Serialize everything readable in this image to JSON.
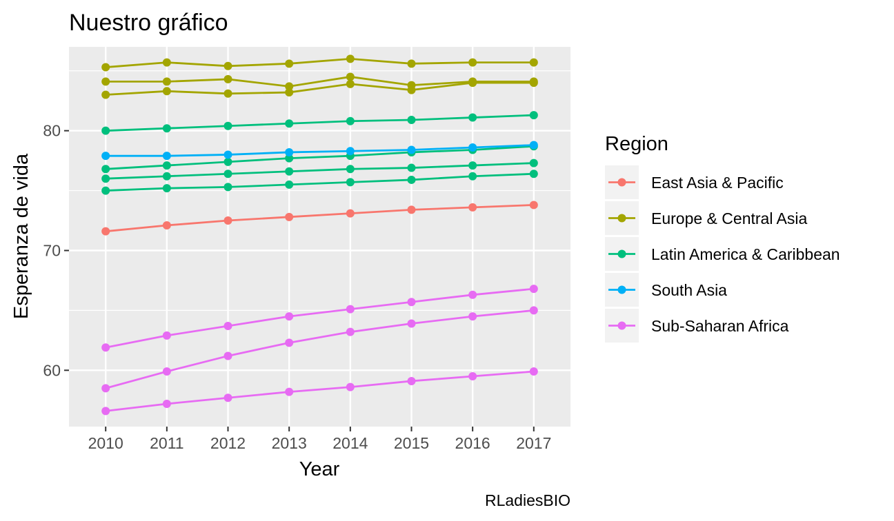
{
  "chart_data": {
    "type": "line",
    "title": "Nuestro gráfico",
    "xlabel": "Year",
    "ylabel": "Esperanza de vida",
    "caption": "RLadiesBIO",
    "legend_title": "Region",
    "legend_position": "right",
    "grid": true,
    "x": [
      2010,
      2011,
      2012,
      2013,
      2014,
      2015,
      2016,
      2017
    ],
    "x_ticks": [
      "2010",
      "2011",
      "2012",
      "2013",
      "2014",
      "2015",
      "2016",
      "2017"
    ],
    "y_ticks": [
      60,
      70,
      80
    ],
    "ylim": [
      55.3,
      87.0
    ],
    "regions": [
      {
        "name": "East Asia & Pacific",
        "color": "#F8766D"
      },
      {
        "name": "Europe & Central Asia",
        "color": "#A3A500"
      },
      {
        "name": "Latin America & Caribbean",
        "color": "#00BF7D"
      },
      {
        "name": "South Asia",
        "color": "#00B0F6"
      },
      {
        "name": "Sub-Saharan Africa",
        "color": "#E76BF3"
      }
    ],
    "series": [
      {
        "region": "East Asia & Pacific",
        "values": [
          71.6,
          72.1,
          72.5,
          72.8,
          73.1,
          73.4,
          73.6,
          73.8
        ]
      },
      {
        "region": "Europe & Central Asia",
        "values": [
          85.3,
          85.7,
          85.4,
          85.6,
          86.0,
          85.6,
          85.7,
          85.7
        ]
      },
      {
        "region": "Europe & Central Asia",
        "values": [
          84.1,
          84.1,
          84.3,
          83.7,
          84.5,
          83.8,
          84.1,
          84.1
        ]
      },
      {
        "region": "Europe & Central Asia",
        "values": [
          83.0,
          83.3,
          83.1,
          83.2,
          83.9,
          83.4,
          84.0,
          84.0
        ]
      },
      {
        "region": "Latin America & Caribbean",
        "values": [
          80.0,
          80.2,
          80.4,
          80.6,
          80.8,
          80.9,
          81.1,
          81.3
        ]
      },
      {
        "region": "Latin America & Caribbean",
        "values": [
          76.8,
          77.1,
          77.4,
          77.7,
          77.9,
          78.2,
          78.4,
          78.7
        ]
      },
      {
        "region": "Latin America & Caribbean",
        "values": [
          76.0,
          76.2,
          76.4,
          76.6,
          76.8,
          76.9,
          77.1,
          77.3
        ]
      },
      {
        "region": "Latin America & Caribbean",
        "values": [
          75.0,
          75.2,
          75.3,
          75.5,
          75.7,
          75.9,
          76.2,
          76.4
        ]
      },
      {
        "region": "South Asia",
        "values": [
          77.9,
          77.9,
          78.0,
          78.2,
          78.3,
          78.4,
          78.6,
          78.8
        ]
      },
      {
        "region": "Sub-Saharan Africa",
        "values": [
          61.9,
          62.9,
          63.7,
          64.5,
          65.1,
          65.7,
          66.3,
          66.8
        ]
      },
      {
        "region": "Sub-Saharan Africa",
        "values": [
          58.5,
          59.9,
          61.2,
          62.3,
          63.2,
          63.9,
          64.5,
          65.0
        ]
      },
      {
        "region": "Sub-Saharan Africa",
        "values": [
          56.6,
          57.2,
          57.7,
          58.2,
          58.6,
          59.1,
          59.5,
          59.9
        ]
      }
    ]
  }
}
